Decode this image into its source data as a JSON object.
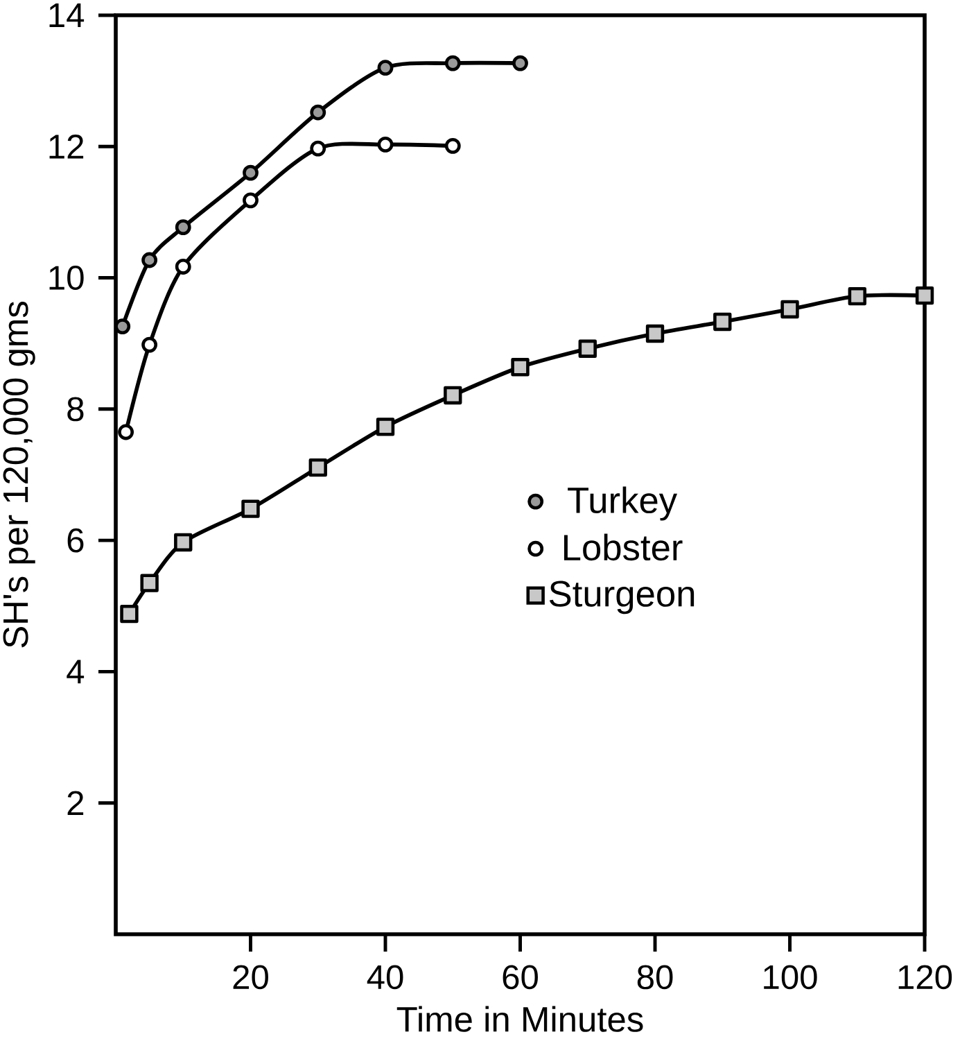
{
  "chart_data": {
    "type": "line",
    "xlabel": "Time in Minutes",
    "ylabel": "SH's per 120,000 gms",
    "xlim": [
      0,
      120
    ],
    "ylim": [
      0,
      14
    ],
    "xticks": [
      20,
      40,
      60,
      80,
      100,
      120
    ],
    "yticks": [
      2,
      4,
      6,
      8,
      10,
      12,
      14
    ],
    "legend": "center",
    "grid": false,
    "line_style": "solid",
    "series": [
      {
        "name": "Turkey",
        "color": "#000000",
        "marker": "circle",
        "x": [
          1,
          5,
          10,
          20,
          30,
          40,
          50,
          60
        ],
        "values": [
          9.26,
          10.27,
          10.77,
          11.6,
          12.52,
          13.2,
          13.27,
          13.27
        ]
      },
      {
        "name": "Lobster",
        "color": "#000000",
        "marker": "circle",
        "x": [
          1.5,
          5,
          10,
          20,
          30,
          40,
          50
        ],
        "values": [
          7.65,
          8.98,
          10.17,
          11.18,
          11.97,
          12.03,
          12.01
        ]
      },
      {
        "name": "Sturgeon",
        "color": "#000000",
        "marker": "square",
        "x": [
          2,
          5,
          10,
          20,
          30,
          40,
          50,
          60,
          70,
          80,
          90,
          100,
          110,
          120
        ],
        "values": [
          4.88,
          5.35,
          5.97,
          6.48,
          7.11,
          7.73,
          8.21,
          8.64,
          8.92,
          9.15,
          9.33,
          9.52,
          9.72,
          9.73
        ]
      }
    ]
  }
}
